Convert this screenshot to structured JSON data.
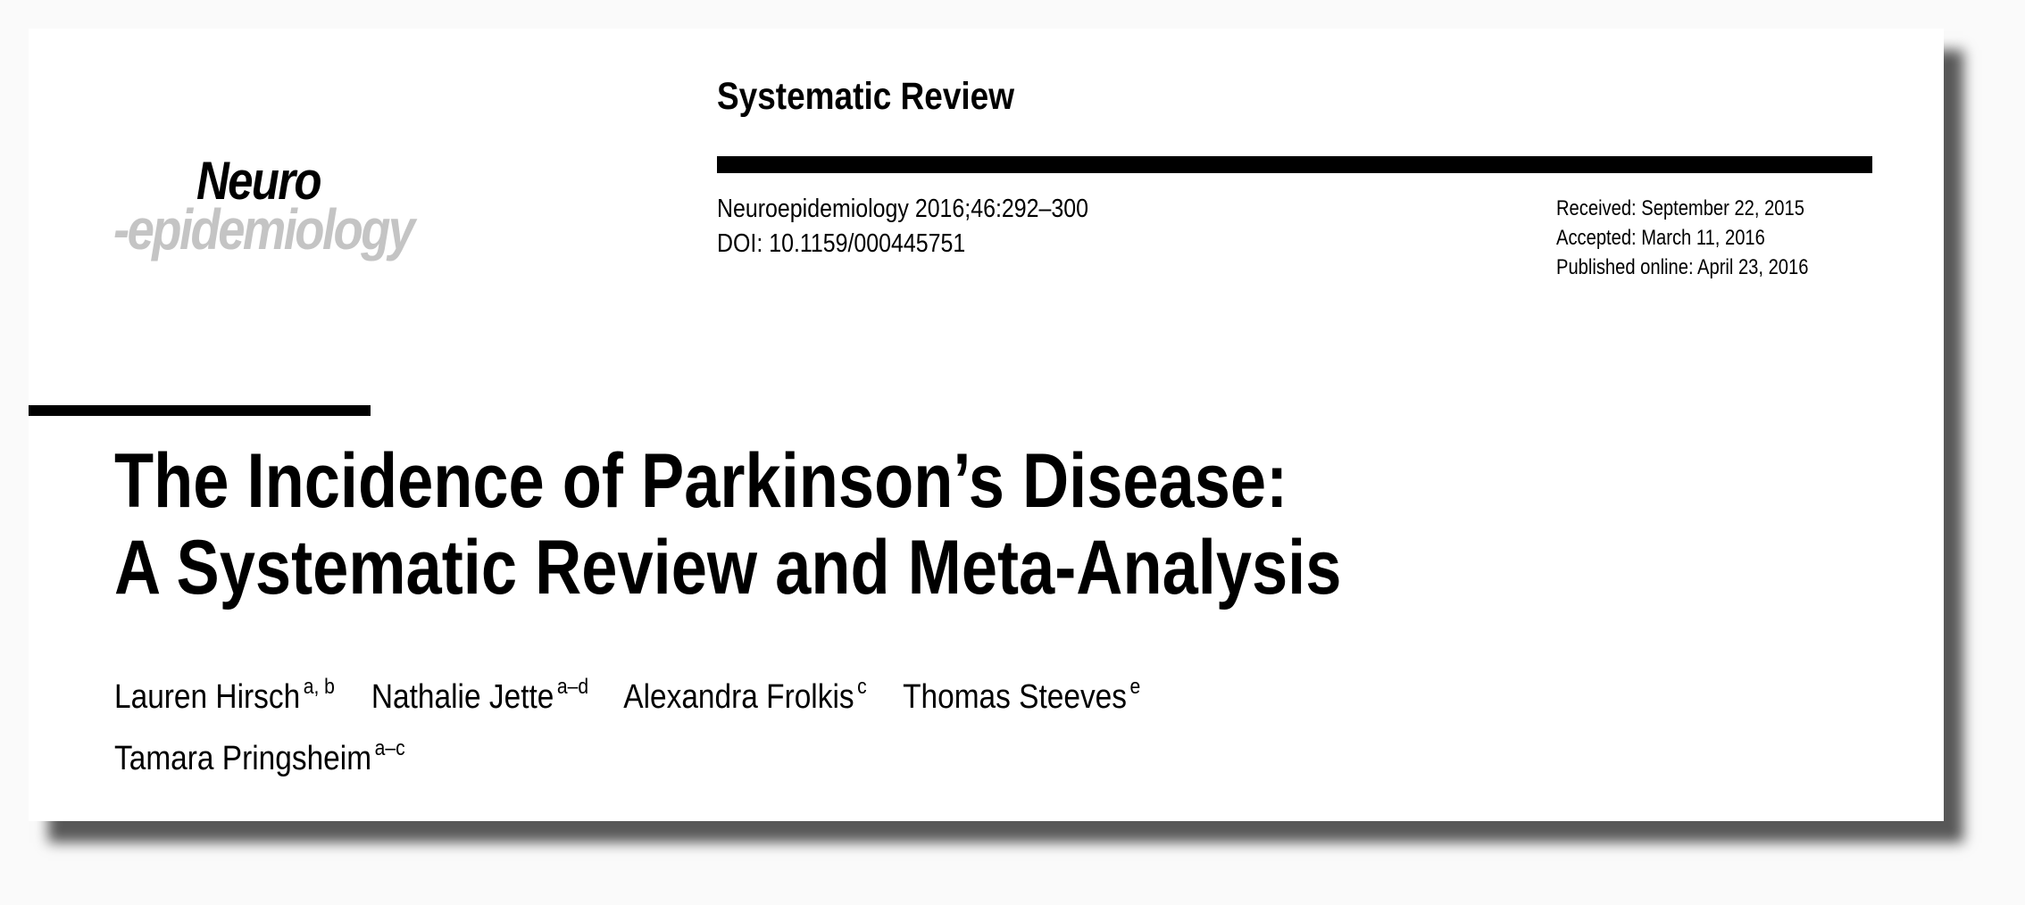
{
  "logo": {
    "line1": "Neuro",
    "line2": "-epidemiology"
  },
  "section_label": "Systematic Review",
  "citation": {
    "journal": "Neuroepidemiology 2016;46:292–300",
    "doi": "DOI: 10.1159/000445751"
  },
  "dates": {
    "received": "Received: September 22, 2015",
    "accepted": "Accepted: March 11, 2016",
    "published": "Published online: April 23, 2016"
  },
  "title": {
    "line1": "The Incidence of Parkinson’s Disease:",
    "line2": "A Systematic Review and Meta-Analysis"
  },
  "authors": [
    {
      "name": "Lauren Hirsch",
      "affil": "a, b"
    },
    {
      "name": "Nathalie Jette",
      "affil": "a–d"
    },
    {
      "name": "Alexandra Frolkis",
      "affil": "c"
    },
    {
      "name": "Thomas Steeves",
      "affil": "e"
    },
    {
      "name": "Tamara Pringsheim",
      "affil": "a–c"
    }
  ]
}
